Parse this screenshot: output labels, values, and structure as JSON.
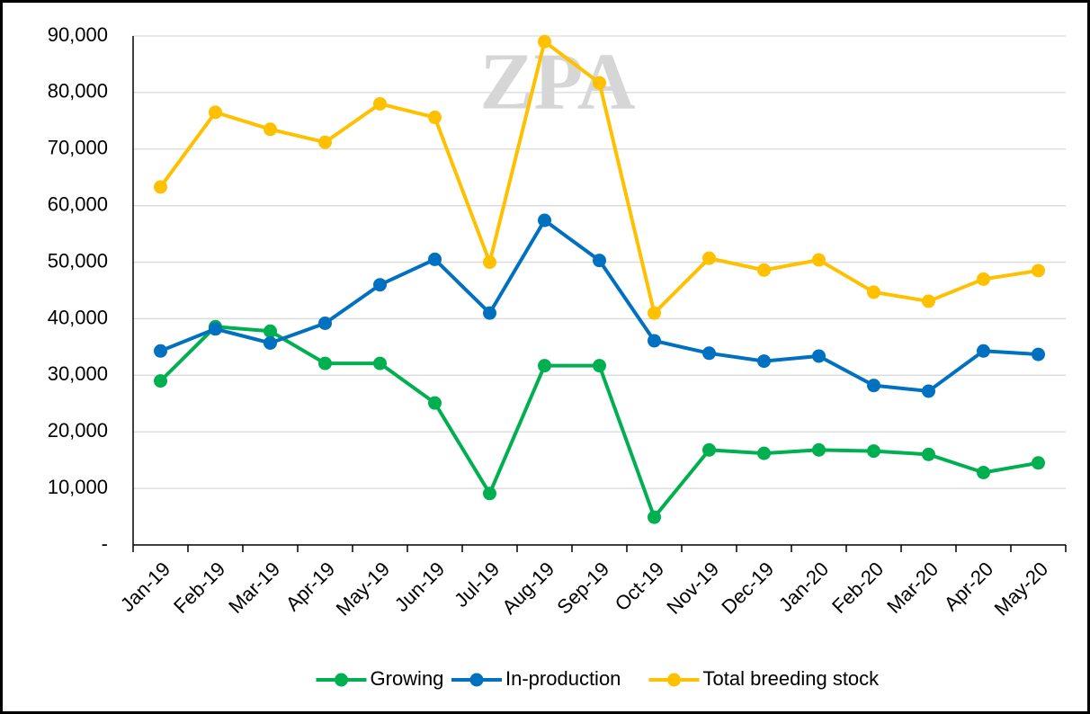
{
  "chart_data": {
    "type": "line",
    "watermark": "ZPA",
    "categories": [
      "Jan-19",
      "Feb-19",
      "Mar-19",
      "Apr-19",
      "May-19",
      "Jun-19",
      "Jul-19",
      "Aug-19",
      "Sep-19",
      "Oct-19",
      "Nov-19",
      "Dec-19",
      "Jan-20",
      "Feb-20",
      "Mar-20",
      "Apr-20",
      "May-20"
    ],
    "series": [
      {
        "name": "Growing",
        "color": "#00b050",
        "values": [
          29000,
          38600,
          37800,
          32100,
          32100,
          25100,
          9100,
          31700,
          31700,
          4900,
          16800,
          16200,
          16800,
          16600,
          16000,
          12800,
          14500
        ]
      },
      {
        "name": "In-production",
        "color": "#0070c0",
        "values": [
          34300,
          38200,
          35700,
          39200,
          46000,
          50500,
          41000,
          57400,
          50300,
          36100,
          33900,
          32500,
          33400,
          28200,
          27200,
          34300,
          33700
        ]
      },
      {
        "name": "Total breeding stock",
        "color": "#ffc000",
        "values": [
          63300,
          76500,
          73500,
          71200,
          78000,
          75600,
          50000,
          89000,
          81700,
          41000,
          50700,
          48600,
          50400,
          44700,
          43100,
          47000,
          48500
        ]
      }
    ],
    "ylim": [
      0,
      90000
    ],
    "yticks": [
      {
        "value": 0,
        "label": "-"
      },
      {
        "value": 10000,
        "label": "10,000"
      },
      {
        "value": 20000,
        "label": "20,000"
      },
      {
        "value": 30000,
        "label": "30,000"
      },
      {
        "value": 40000,
        "label": "40,000"
      },
      {
        "value": 50000,
        "label": "50,000"
      },
      {
        "value": 60000,
        "label": "60,000"
      },
      {
        "value": 70000,
        "label": "70,000"
      },
      {
        "value": 80000,
        "label": "80,000"
      },
      {
        "value": 90000,
        "label": "90,000"
      }
    ],
    "grid": true,
    "legend": "bottom"
  }
}
